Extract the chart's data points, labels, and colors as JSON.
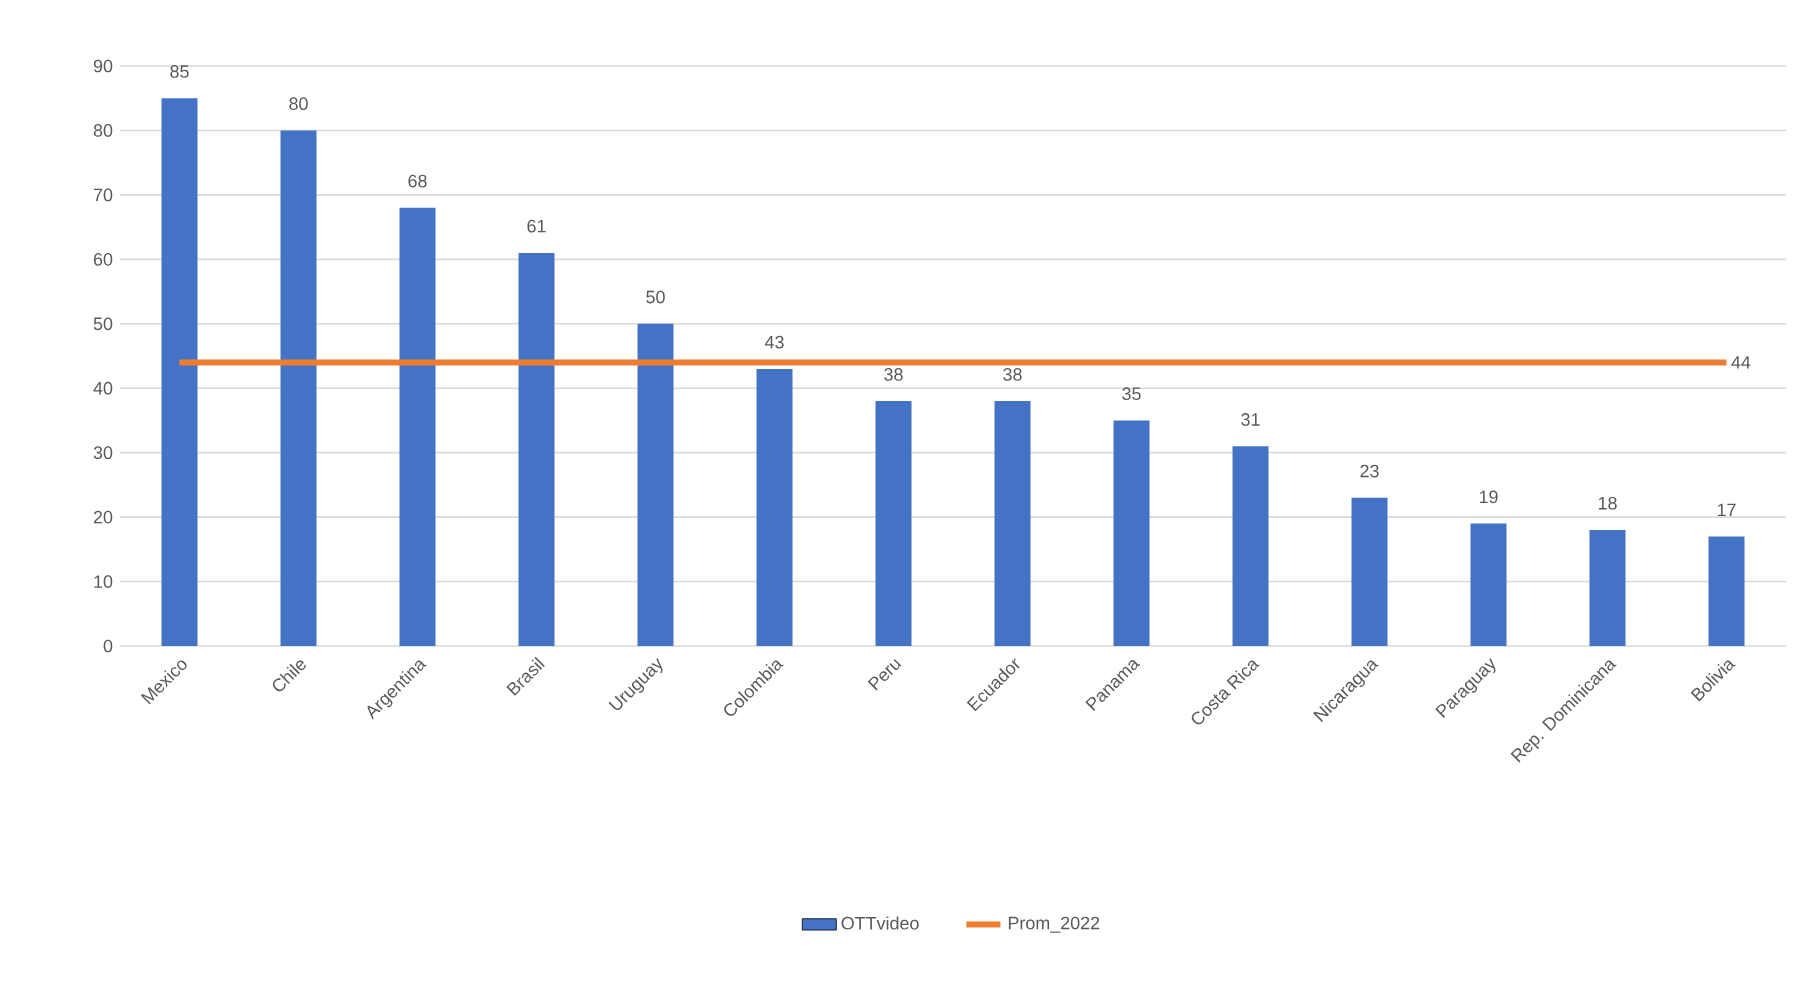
{
  "chart_data": {
    "type": "bar",
    "categories": [
      "Mexico",
      "Chile",
      "Argentina",
      "Brasil",
      "Uruguay",
      "Colombia",
      "Peru",
      "Ecuador",
      "Panama",
      "Costa Rica",
      "Nicaragua",
      "Paraguay",
      "Rep. Dominicana",
      "Bolivia"
    ],
    "series": [
      {
        "name": "OTTvideo",
        "color": "#4472c4",
        "values": [
          85,
          80,
          68,
          61,
          50,
          43,
          38,
          38,
          35,
          31,
          23,
          19,
          18,
          17
        ],
        "value_labels": [
          "85",
          "80",
          "68",
          "61",
          "50",
          "43",
          "38",
          "38",
          "35",
          "31",
          "23",
          "19",
          "18",
          "17"
        ]
      },
      {
        "name": "Prom_2022",
        "type": "line",
        "color": "#ed7d31",
        "values": [
          44,
          44,
          44,
          44,
          44,
          44,
          44,
          44,
          44,
          44,
          44,
          44,
          44,
          44
        ],
        "value_labels": [
          null,
          null,
          null,
          null,
          null,
          null,
          null,
          null,
          null,
          null,
          null,
          null,
          null,
          "44"
        ]
      }
    ],
    "ylim": [
      0,
      90
    ],
    "yticks": [
      0,
      10,
      20,
      30,
      40,
      50,
      60,
      70,
      80,
      90
    ],
    "grid": "y",
    "legend": "bottom"
  }
}
